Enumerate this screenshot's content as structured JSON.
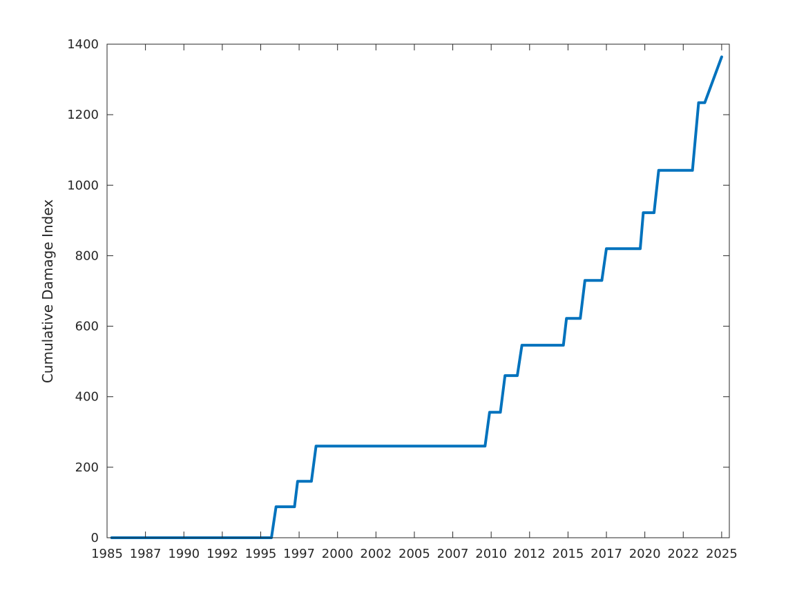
{
  "chart_data": {
    "type": "line",
    "title": "",
    "xlabel": "",
    "ylabel": "Cumulative Damage Index",
    "xlim": [
      1985.0,
      2025.5
    ],
    "ylim": [
      0,
      1400
    ],
    "x_ticks": [
      {
        "value": 1985.0,
        "label": "1985"
      },
      {
        "value": 1987.5,
        "label": "1987"
      },
      {
        "value": 1990.0,
        "label": "1990"
      },
      {
        "value": 1992.5,
        "label": "1992"
      },
      {
        "value": 1995.0,
        "label": "1995"
      },
      {
        "value": 1997.5,
        "label": "1997"
      },
      {
        "value": 2000.0,
        "label": "2000"
      },
      {
        "value": 2002.5,
        "label": "2002"
      },
      {
        "value": 2005.0,
        "label": "2005"
      },
      {
        "value": 2007.5,
        "label": "2007"
      },
      {
        "value": 2010.0,
        "label": "2010"
      },
      {
        "value": 2012.5,
        "label": "2012"
      },
      {
        "value": 2015.0,
        "label": "2015"
      },
      {
        "value": 2017.5,
        "label": "2017"
      },
      {
        "value": 2020.0,
        "label": "2020"
      },
      {
        "value": 2022.5,
        "label": "2022"
      },
      {
        "value": 2025.0,
        "label": "2025"
      }
    ],
    "y_ticks": [
      0,
      200,
      400,
      600,
      800,
      1000,
      1200,
      1400
    ],
    "grid": false,
    "line_color": "#0072BD",
    "series": [
      {
        "x": [
          1985.3,
          1995.7,
          1996.0,
          1997.2,
          1997.4,
          1998.3,
          1998.6,
          2009.6,
          2009.9,
          2010.6,
          2010.9,
          2011.7,
          2012.0,
          2014.7,
          2014.9,
          2015.8,
          2016.1,
          2017.2,
          2017.5,
          2019.7,
          2019.9,
          2020.6,
          2020.9,
          2023.1,
          2023.5,
          2023.9,
          2025.0
        ],
        "y": [
          0,
          0,
          88,
          88,
          160,
          160,
          260,
          260,
          356,
          356,
          460,
          460,
          546,
          546,
          622,
          622,
          730,
          730,
          820,
          820,
          922,
          922,
          1042,
          1042,
          1234,
          1234,
          1364
        ]
      }
    ]
  }
}
